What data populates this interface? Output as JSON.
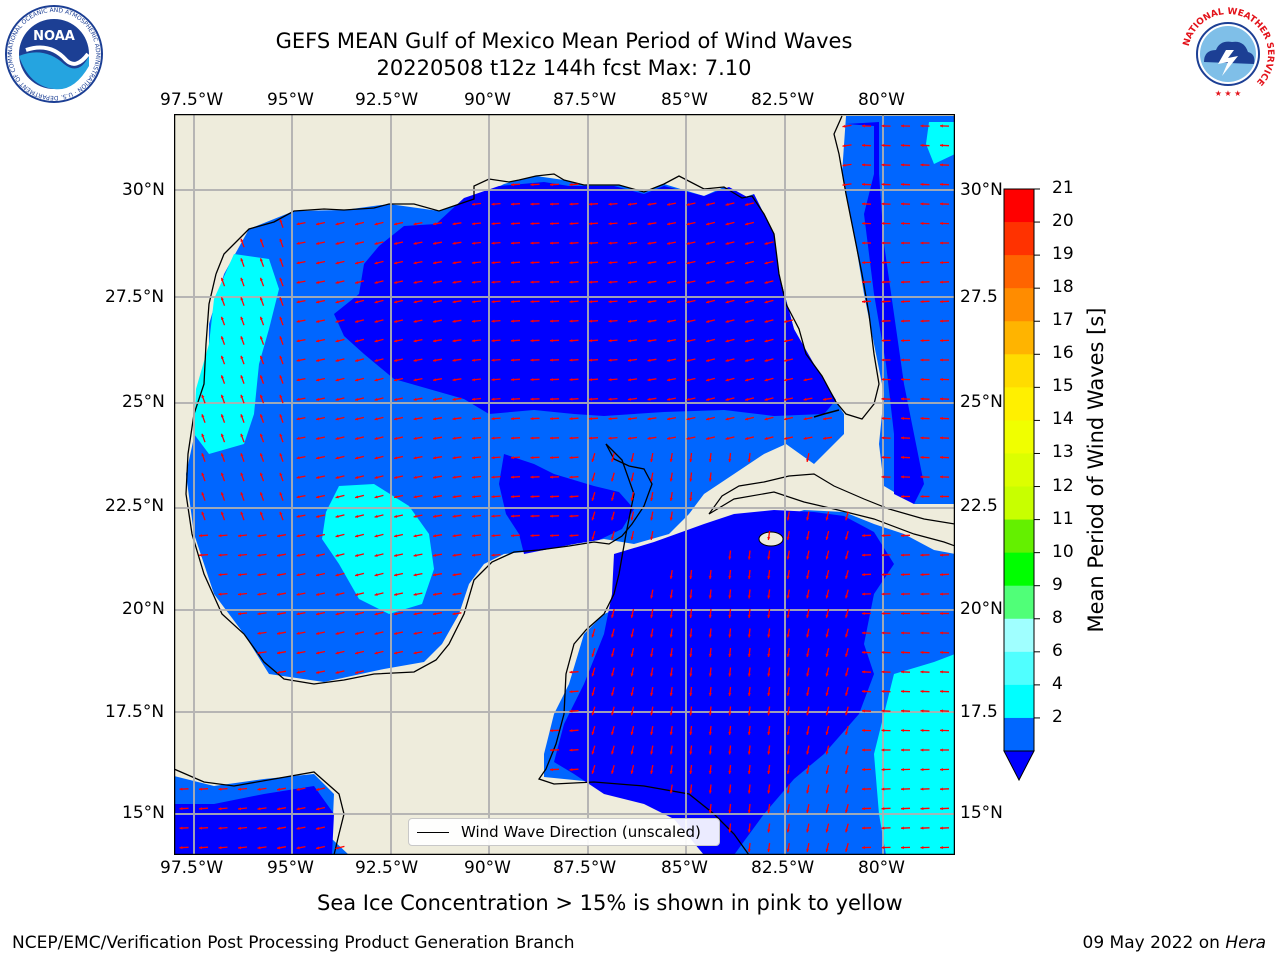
{
  "title": {
    "line1": "GEFS MEAN Gulf of Mexico Mean Period of Wind Waves",
    "line2": "20220508 t12z 144h fcst   Max: 7.10"
  },
  "logos": {
    "noaa": "NOAA",
    "noaa_ring": "NATIONAL OCEANIC AND ATMOSPHERIC ADMINISTRATION · U.S. DEPARTMENT OF COMMERCE",
    "nws_ring": "NATIONAL WEATHER SERVICE"
  },
  "map": {
    "lon_ticks": [
      "97.5°W",
      "95°W",
      "92.5°W",
      "90°W",
      "87.5°W",
      "85°W",
      "82.5°W",
      "80°W"
    ],
    "lat_ticks_left": [
      "30°N",
      "27.5°N",
      "25°N",
      "22.5°N",
      "20°N",
      "17.5°N",
      "15°N"
    ],
    "lat_ticks_right": [
      "30°N",
      "27.5",
      "25°N",
      "22.5",
      "20°N",
      "17.5",
      "15°N"
    ],
    "legend_label": "Wind Wave Direction (unscaled)",
    "colors": {
      "land": "#eeecdc",
      "band_2_4": "#0066ff",
      "band_lt_2": "#0000ff",
      "band_4_6": "#00ffff",
      "arrow": "#ff0000",
      "unfilled_ocean": "#ffffff"
    }
  },
  "colorbar": {
    "label": "Mean Period of Wind Waves [s]",
    "ticks": [
      "21",
      "20",
      "19",
      "18",
      "17",
      "16",
      "15",
      "14",
      "13",
      "12",
      "11",
      "10",
      "9",
      "8",
      "6",
      "4",
      "2"
    ],
    "colors": [
      "#ff0000",
      "#ff3200",
      "#ff6400",
      "#ff8c00",
      "#ffb400",
      "#ffdc00",
      "#fff000",
      "#f0ff00",
      "#dcff00",
      "#c8ff00",
      "#64f000",
      "#00ff00",
      "#50ff78",
      "#a0ffff",
      "#50ffff",
      "#00ffff",
      "#0066ff"
    ],
    "extend_color": "#0000ff"
  },
  "note": "Sea Ice Concentration > 15% is shown in pink to yellow",
  "footer": {
    "left": "NCEP/EMC/Verification Post Processing Product Generation Branch",
    "right_date": "09 May 2022 on ",
    "right_host": "Hera"
  }
}
